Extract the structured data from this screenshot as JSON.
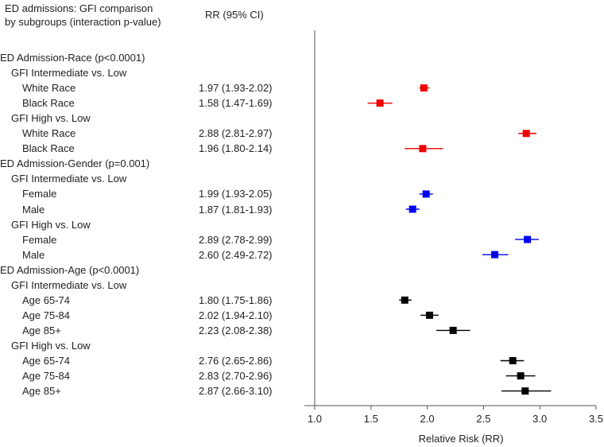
{
  "header": {
    "title_line1": "ED admissions: GFI comparison",
    "title_line2": "by subgroups (interaction p-value)",
    "rr_column": "RR (95% CI)"
  },
  "colors": {
    "race": "#ee0000",
    "gender": "#0000ee",
    "age": "#000000",
    "axis": "#555555"
  },
  "chart_data": {
    "type": "forest",
    "xlabel": "Relative Risk (RR)",
    "xlim": [
      1.0,
      3.5
    ],
    "xticks": [
      "1.0",
      "1.5",
      "2.0",
      "2.5",
      "3.0",
      "3.5"
    ],
    "reference_line": 1.0,
    "rows": [
      {
        "label": "ED Admission-Race (p<0.0001)",
        "level": 0
      },
      {
        "label": "GFI Intermediate vs. Low",
        "level": 1
      },
      {
        "label": "White Race",
        "level": 2,
        "rr_text": "1.97 (1.93-2.02)",
        "est": 1.97,
        "lo": 1.93,
        "hi": 2.02,
        "group": "race"
      },
      {
        "label": "Black Race",
        "level": 2,
        "rr_text": "1.58 (1.47-1.69)",
        "est": 1.58,
        "lo": 1.47,
        "hi": 1.69,
        "group": "race"
      },
      {
        "label": "GFI High vs. Low",
        "level": 1
      },
      {
        "label": "White Race",
        "level": 2,
        "rr_text": "2.88 (2.81-2.97)",
        "est": 2.88,
        "lo": 2.81,
        "hi": 2.97,
        "group": "race"
      },
      {
        "label": "Black Race",
        "level": 2,
        "rr_text": "1.96 (1.80-2.14)",
        "est": 1.96,
        "lo": 1.8,
        "hi": 2.14,
        "group": "race"
      },
      {
        "label": "ED Admission-Gender (p=0.001)",
        "level": 0
      },
      {
        "label": "GFI Intermediate vs. Low",
        "level": 1
      },
      {
        "label": "Female",
        "level": 2,
        "rr_text": "1.99 (1.93-2.05)",
        "est": 1.99,
        "lo": 1.93,
        "hi": 2.05,
        "group": "gender"
      },
      {
        "label": "Male",
        "level": 2,
        "rr_text": "1.87 (1.81-1.93)",
        "est": 1.87,
        "lo": 1.81,
        "hi": 1.93,
        "group": "gender"
      },
      {
        "label": "GFI High vs. Low",
        "level": 1
      },
      {
        "label": "Female",
        "level": 2,
        "rr_text": "2.89 (2.78-2.99)",
        "est": 2.89,
        "lo": 2.78,
        "hi": 2.99,
        "group": "gender"
      },
      {
        "label": "Male",
        "level": 2,
        "rr_text": "2.60 (2.49-2.72)",
        "est": 2.6,
        "lo": 2.49,
        "hi": 2.72,
        "group": "gender"
      },
      {
        "label": "ED Admission-Age (p<0.0001)",
        "level": 0
      },
      {
        "label": "GFI Intermediate vs. Low",
        "level": 1
      },
      {
        "label": "Age 65-74",
        "level": 2,
        "rr_text": "1.80 (1.75-1.86)",
        "est": 1.8,
        "lo": 1.75,
        "hi": 1.86,
        "group": "age"
      },
      {
        "label": "Age 75-84",
        "level": 2,
        "rr_text": "2.02 (1.94-2.10)",
        "est": 2.02,
        "lo": 1.94,
        "hi": 2.1,
        "group": "age"
      },
      {
        "label": "Age 85+",
        "level": 2,
        "rr_text": "2.23 (2.08-2.38)",
        "est": 2.23,
        "lo": 2.08,
        "hi": 2.38,
        "group": "age"
      },
      {
        "label": "GFI High vs. Low",
        "level": 1
      },
      {
        "label": "Age 65-74",
        "level": 2,
        "rr_text": "2.76 (2.65-2.86)",
        "est": 2.76,
        "lo": 2.65,
        "hi": 2.86,
        "group": "age"
      },
      {
        "label": "Age 75-84",
        "level": 2,
        "rr_text": "2.83 (2.70-2.96)",
        "est": 2.83,
        "lo": 2.7,
        "hi": 2.96,
        "group": "age"
      },
      {
        "label": "Age 85+",
        "level": 2,
        "rr_text": "2.87 (2.66-3.10)",
        "est": 2.87,
        "lo": 2.66,
        "hi": 3.1,
        "group": "age"
      }
    ]
  }
}
